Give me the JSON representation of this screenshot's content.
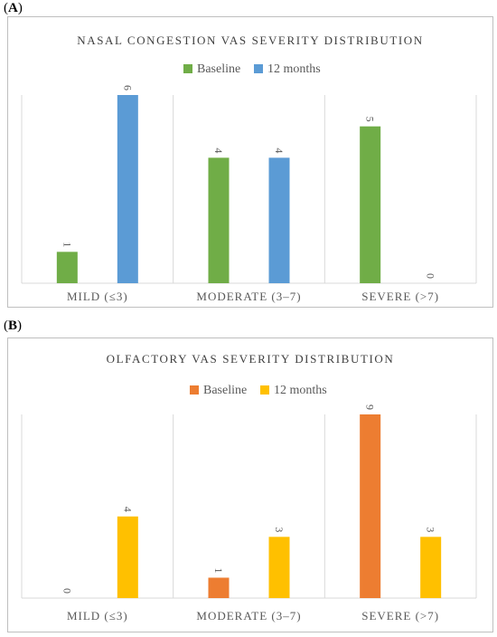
{
  "panels": [
    {
      "label": "A",
      "chart_data": {
        "type": "bar",
        "title": "NASAL CONGESTION VAS SEVERITY DISTRIBUTION",
        "categories": [
          "MILD (≤3)",
          "MODERATE (3–7)",
          "SEVERE (>7)"
        ],
        "series": [
          {
            "name": "Baseline",
            "color": "#70AD47",
            "values": [
              1,
              4,
              5
            ]
          },
          {
            "name": "12 months",
            "color": "#5B9BD5",
            "values": [
              6,
              4,
              0
            ]
          }
        ],
        "ylim": [
          0,
          6
        ],
        "legend": "top",
        "grid": false,
        "xlabel": "",
        "ylabel": ""
      }
    },
    {
      "label": "B",
      "chart_data": {
        "type": "bar",
        "title": "OLFACTORY VAS SEVERITY DISTRIBUTION",
        "categories": [
          "MILD (≤3)",
          "MODERATE (3–7)",
          "SEVERE (>7)"
        ],
        "series": [
          {
            "name": "Baseline",
            "color": "#ED7D31",
            "values": [
              0,
              1,
              9
            ]
          },
          {
            "name": "12 months",
            "color": "#FFC000",
            "values": [
              4,
              3,
              3
            ]
          }
        ],
        "ylim": [
          0,
          9
        ],
        "legend": "top",
        "grid": false,
        "xlabel": "",
        "ylabel": ""
      }
    }
  ]
}
